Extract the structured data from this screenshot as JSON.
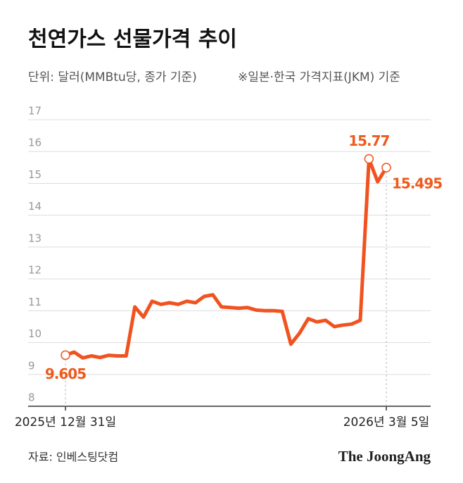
{
  "chart_data": {
    "type": "line",
    "title": "천연가스 선물가격 추이",
    "subtitle": "단위: 달러(MMBtu당, 종가 기준)",
    "note": "※일본·한국 가격지표(JKM) 기준",
    "source": "자료: 인베스팅닷컴",
    "credit": "The JoongAng",
    "categories": [
      "2025년 12월 31일",
      null,
      null,
      null,
      null,
      null,
      null,
      null,
      null,
      null,
      null,
      null,
      null,
      null,
      null,
      null,
      null,
      null,
      null,
      null,
      null,
      null,
      null,
      null,
      null,
      null,
      null,
      null,
      null,
      null,
      null,
      null,
      null,
      null,
      null,
      null,
      null,
      "2026년 3월 5일"
    ],
    "values": [
      9.605,
      9.7,
      9.52,
      9.58,
      9.53,
      9.6,
      9.58,
      9.58,
      11.12,
      10.8,
      11.3,
      11.2,
      11.25,
      11.2,
      11.3,
      11.25,
      11.45,
      11.5,
      11.12,
      11.1,
      11.08,
      11.1,
      11.02,
      11.0,
      11.0,
      10.98,
      9.95,
      10.3,
      10.75,
      10.65,
      10.7,
      10.5,
      10.55,
      10.58,
      10.7,
      15.77,
      15.05,
      15.495
    ],
    "color": "#f0531f",
    "label_color": "#ee5a1c",
    "ylim": [
      8,
      17
    ],
    "yticks": [
      8,
      9,
      10,
      11,
      12,
      13,
      14,
      15,
      16,
      17
    ],
    "grid": true
  }
}
